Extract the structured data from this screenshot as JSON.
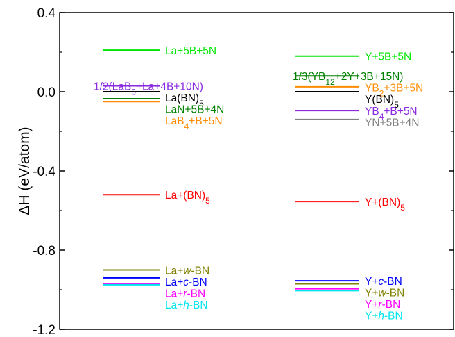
{
  "chart_data": {
    "type": "level-diagram",
    "ylabel": "ΔH (eV/atom)",
    "ylim": [
      -1.2,
      0.4
    ],
    "yticks": [
      "0.4",
      "0.0",
      "-0.4",
      "-0.8",
      "-1.2"
    ],
    "columns": [
      {
        "key": "La",
        "levels": [
          {
            "label": "La+5B+5N",
            "value": 0.21,
            "color": "#00e600"
          },
          {
            "label": "1/2(LaB6+La+4B+10N)",
            "value": 0.03,
            "color": "#8a2be2"
          },
          {
            "label": "La(BN)5",
            "value": 0.0,
            "color": "#000000"
          },
          {
            "label": "LaN+5B+4N",
            "value": -0.035,
            "color": "#008000"
          },
          {
            "label": "LaB4+B+5N",
            "value": -0.05,
            "color": "#ff8c00"
          },
          {
            "label": "La+(BN)5",
            "value": -0.52,
            "color": "#ff0000"
          },
          {
            "label": "La+w-BN",
            "value": -0.9,
            "color": "#808000"
          },
          {
            "label": "La+c-BN",
            "value": -0.94,
            "color": "#0000ff"
          },
          {
            "label": "La+r-BN",
            "value": -0.97,
            "color": "#ff00ff"
          },
          {
            "label": "La+h-BN",
            "value": -0.975,
            "color": "#00e5ee"
          }
        ]
      },
      {
        "key": "Y",
        "levels": [
          {
            "label": "Y+5B+5N",
            "value": 0.18,
            "color": "#00e600"
          },
          {
            "label": "1/3(YB12+2Y+3B+15N)",
            "value": 0.08,
            "color": "#008000"
          },
          {
            "label": "YB2+3B+5N",
            "value": 0.025,
            "color": "#ff8c00"
          },
          {
            "label": "Y(BN)5",
            "value": 0.0,
            "color": "#000000"
          },
          {
            "label": "YB4+B+5N",
            "value": -0.095,
            "color": "#8a2be2"
          },
          {
            "label": "YN+5B+4N",
            "value": -0.14,
            "color": "#808080"
          },
          {
            "label": "Y+(BN)5",
            "value": -0.555,
            "color": "#ff0000"
          },
          {
            "label": "Y+c-BN",
            "value": -0.955,
            "color": "#0000ff"
          },
          {
            "label": "Y+w-BN",
            "value": -0.97,
            "color": "#808000"
          },
          {
            "label": "Y+r-BN",
            "value": -0.995,
            "color": "#ff00ff"
          },
          {
            "label": "Y+h-BN",
            "value": -1.005,
            "color": "#00e5ee"
          }
        ]
      }
    ]
  }
}
